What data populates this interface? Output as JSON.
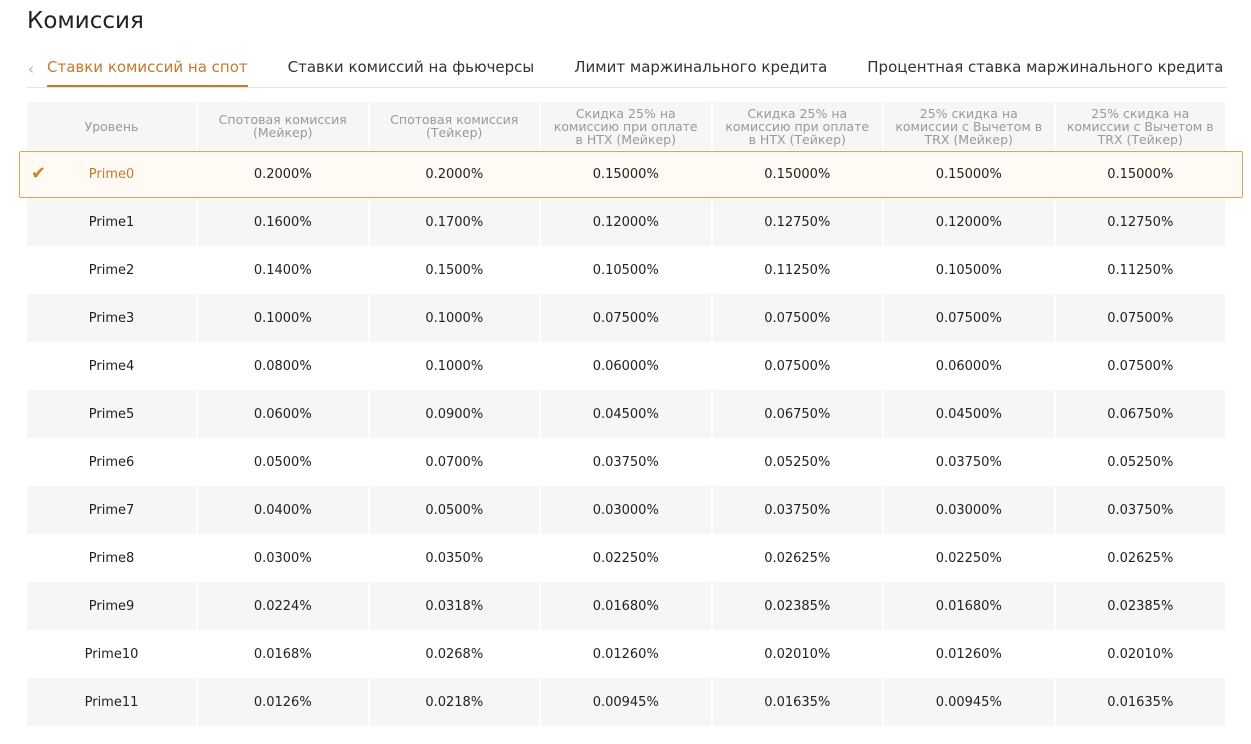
{
  "header": {
    "title": "Комиссия"
  },
  "tabs": [
    "Ставки комиссий на спот",
    "Ставки комиссий на фьючерсы",
    "Лимит маржинального кредита",
    "Процентная ставка маржинального кредита"
  ],
  "table": {
    "columns": [
      "Уровень",
      "Спотовая комиссия (Мейкер)",
      "Спотовая комиссия (Тейкер)",
      "Скидка 25% на комиссию при оплате в HTX (Мейкер)",
      "Скидка 25% на комиссию при оплате в HTX (Тейкер)",
      "25% скидка на комиссии с Вычетом в TRX (Мейкер)",
      "25% скидка на комиссии с Вычетом в TRX (Тейкер)"
    ],
    "rows": [
      {
        "level": "Prime0",
        "values": [
          "0.2000%",
          "0.2000%",
          "0.15000%",
          "0.15000%",
          "0.15000%",
          "0.15000%"
        ]
      },
      {
        "level": "Prime1",
        "values": [
          "0.1600%",
          "0.1700%",
          "0.12000%",
          "0.12750%",
          "0.12000%",
          "0.12750%"
        ]
      },
      {
        "level": "Prime2",
        "values": [
          "0.1400%",
          "0.1500%",
          "0.10500%",
          "0.11250%",
          "0.10500%",
          "0.11250%"
        ]
      },
      {
        "level": "Prime3",
        "values": [
          "0.1000%",
          "0.1000%",
          "0.07500%",
          "0.07500%",
          "0.07500%",
          "0.07500%"
        ]
      },
      {
        "level": "Prime4",
        "values": [
          "0.0800%",
          "0.1000%",
          "0.06000%",
          "0.07500%",
          "0.06000%",
          "0.07500%"
        ]
      },
      {
        "level": "Prime5",
        "values": [
          "0.0600%",
          "0.0900%",
          "0.04500%",
          "0.06750%",
          "0.04500%",
          "0.06750%"
        ]
      },
      {
        "level": "Prime6",
        "values": [
          "0.0500%",
          "0.0700%",
          "0.03750%",
          "0.05250%",
          "0.03750%",
          "0.05250%"
        ]
      },
      {
        "level": "Prime7",
        "values": [
          "0.0400%",
          "0.0500%",
          "0.03000%",
          "0.03750%",
          "0.03000%",
          "0.03750%"
        ]
      },
      {
        "level": "Prime8",
        "values": [
          "0.0300%",
          "0.0350%",
          "0.02250%",
          "0.02625%",
          "0.02250%",
          "0.02625%"
        ]
      },
      {
        "level": "Prime9",
        "values": [
          "0.0224%",
          "0.0318%",
          "0.01680%",
          "0.02385%",
          "0.01680%",
          "0.02385%"
        ]
      },
      {
        "level": "Prime10",
        "values": [
          "0.0168%",
          "0.0268%",
          "0.01260%",
          "0.02010%",
          "0.01260%",
          "0.02010%"
        ]
      },
      {
        "level": "Prime11",
        "values": [
          "0.0126%",
          "0.0218%",
          "0.00945%",
          "0.01635%",
          "0.00945%",
          "0.01635%"
        ]
      }
    ]
  }
}
